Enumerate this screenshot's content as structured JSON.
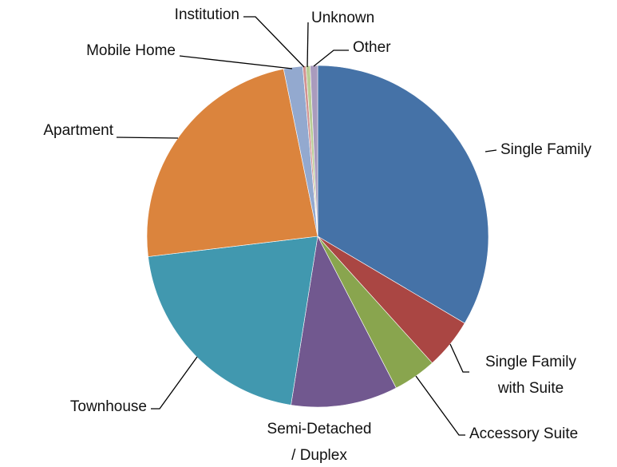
{
  "chart_data": {
    "type": "pie",
    "categories": [
      "Single Family",
      "Single Family\nwith Suite",
      "Accessory Suite",
      "Semi-Detached\n/ Duplex",
      "Townhouse",
      "Apartment",
      "Mobile Home",
      "Institution",
      "Unknown",
      "Other"
    ],
    "values": [
      33.5,
      4.8,
      4.1,
      10.1,
      20.6,
      23.7,
      1.8,
      0.3,
      0.4,
      0.7
    ],
    "colors": [
      "#4572a7",
      "#aa4643",
      "#89a54e",
      "#71588f",
      "#4198af",
      "#db843d",
      "#93a9cf",
      "#d19392",
      "#b9cd96",
      "#a99bbd"
    ]
  }
}
